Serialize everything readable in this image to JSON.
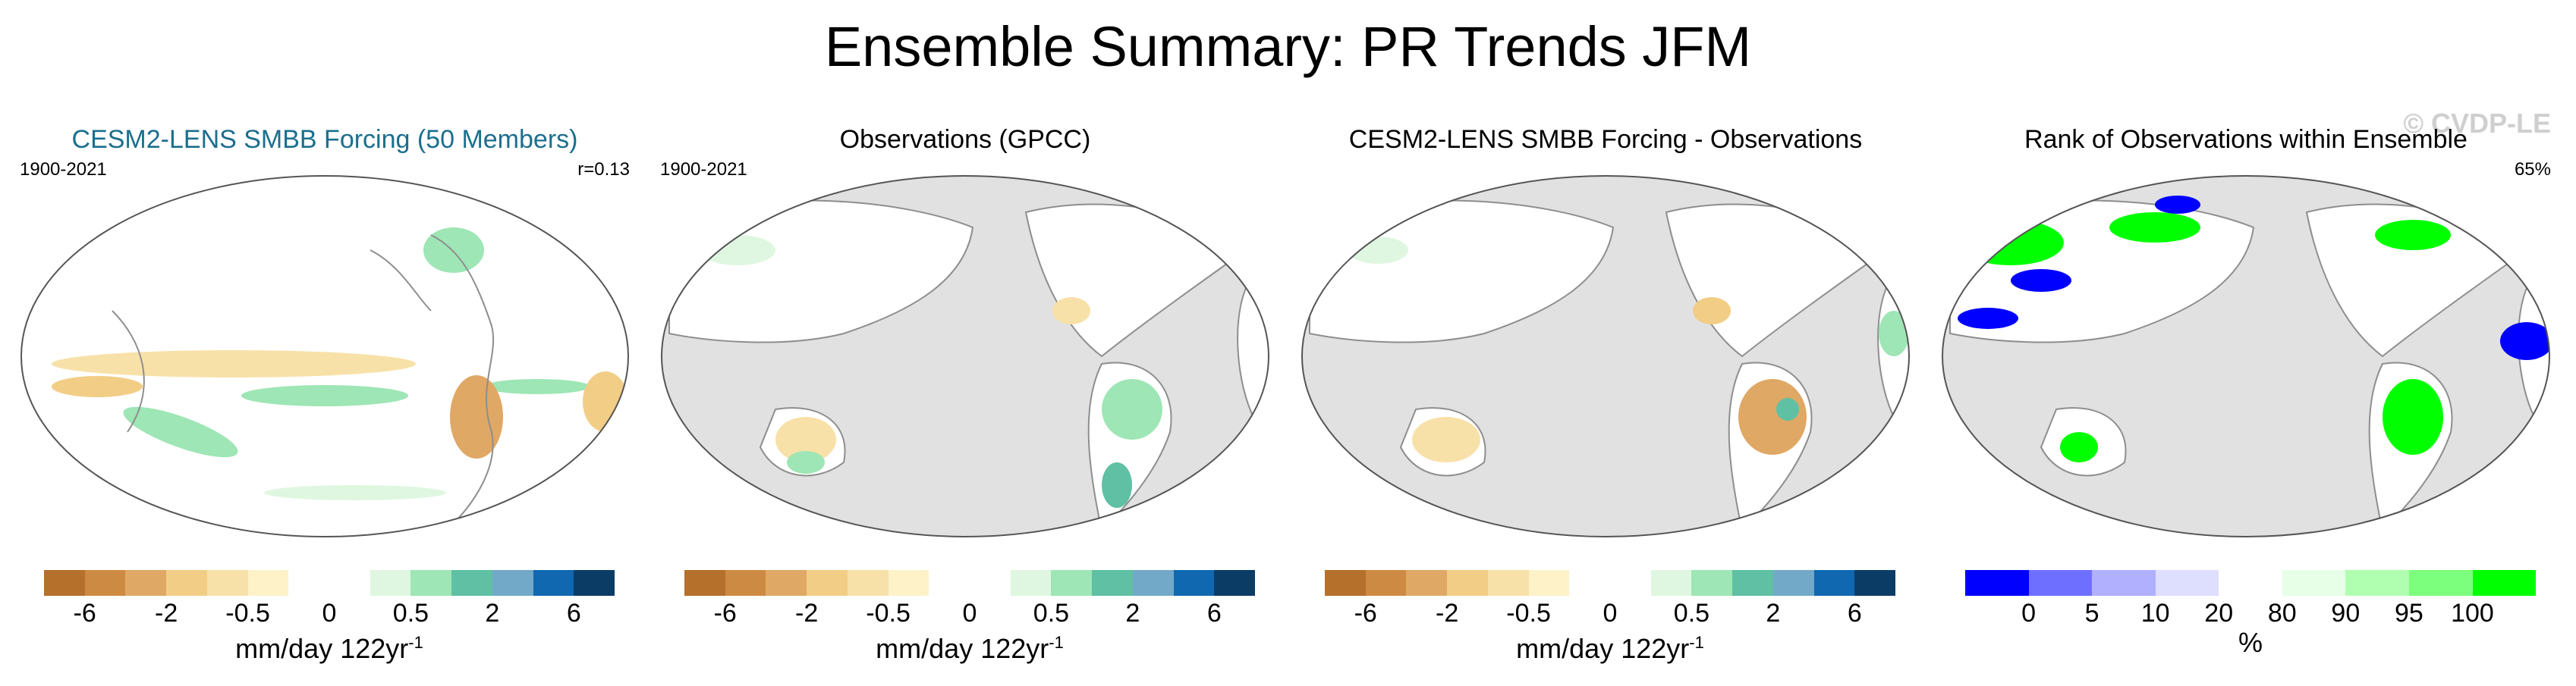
{
  "title": "Ensemble Summary: PR Trends JFM",
  "colors": {
    "diverging": [
      "#b5702c",
      "#cd8a43",
      "#e0a865",
      "#f2cd86",
      "#f8e1a8",
      "#fdf2c8",
      "#ffffff",
      "#ffffff",
      "#dff7e0",
      "#9ee6b5",
      "#5fc0a3",
      "#72a9c8",
      "#1068b0",
      "#0b3c66"
    ],
    "rank": [
      "#0000ff",
      "#6f6fff",
      "#b0b0ff",
      "#dedeff",
      "#ffffff",
      "#e6ffe6",
      "#b0ffb0",
      "#7cff7c",
      "#00ff00"
    ],
    "land": "#ffffff",
    "mask": "#e1e1e1",
    "coast": "#8e8e8e",
    "model_title": "#1b6f8e",
    "watermark": "#cfcfcf"
  },
  "panels": [
    {
      "title": "CESM2-LENS SMBB Forcing (50 Members)",
      "period": "1900-2021",
      "stat": "r=0.13",
      "watermark": ""
    },
    {
      "title": "Observations (GPCC)",
      "period": "1900-2021",
      "stat": "",
      "watermark": ""
    },
    {
      "title": "CESM2-LENS SMBB Forcing - Observations",
      "period": "",
      "stat": "",
      "watermark": ""
    },
    {
      "title": "Rank of Observations within Ensemble",
      "period": "",
      "stat": "65%",
      "watermark": "© CVDP-LE"
    }
  ],
  "colorbars": [
    {
      "unit_main": "mm/day 122yr",
      "unit_sup": "-1",
      "ticks": [
        {
          "label": "-6",
          "at": 1
        },
        {
          "label": "-2",
          "at": 3
        },
        {
          "label": "-0.5",
          "at": 5
        },
        {
          "label": "0",
          "at": 7
        },
        {
          "label": "0.5",
          "at": 9
        },
        {
          "label": "2",
          "at": 11
        },
        {
          "label": "6",
          "at": 13
        }
      ]
    },
    {
      "unit_main": "mm/day 122yr",
      "unit_sup": "-1",
      "ticks": [
        {
          "label": "-6",
          "at": 1
        },
        {
          "label": "-2",
          "at": 3
        },
        {
          "label": "-0.5",
          "at": 5
        },
        {
          "label": "0",
          "at": 7
        },
        {
          "label": "0.5",
          "at": 9
        },
        {
          "label": "2",
          "at": 11
        },
        {
          "label": "6",
          "at": 13
        }
      ]
    },
    {
      "unit_main": "mm/day 122yr",
      "unit_sup": "-1",
      "ticks": [
        {
          "label": "-6",
          "at": 1
        },
        {
          "label": "-2",
          "at": 3
        },
        {
          "label": "-0.5",
          "at": 5
        },
        {
          "label": "0",
          "at": 7
        },
        {
          "label": "0.5",
          "at": 9
        },
        {
          "label": "2",
          "at": 11
        },
        {
          "label": "6",
          "at": 13
        }
      ]
    },
    {
      "unit_main": "%",
      "unit_sup": "",
      "ticks": [
        {
          "label": "0",
          "at": 1
        },
        {
          "label": "5",
          "at": 2
        },
        {
          "label": "10",
          "at": 3
        },
        {
          "label": "20",
          "at": 4
        },
        {
          "label": "80",
          "at": 5
        },
        {
          "label": "90",
          "at": 6
        },
        {
          "label": "95",
          "at": 7
        },
        {
          "label": "100",
          "at": 8
        }
      ]
    }
  ],
  "chart_data": [
    {
      "type": "heatmap",
      "title": "CESM2-LENS SMBB Forcing (50 Members)",
      "period": "1900-2021",
      "pattern_correlation": 0.13,
      "domain": "global ocean+land",
      "units": "mm/day 122yr-1",
      "levels": [
        -6,
        -4,
        -2,
        -1,
        -0.5,
        -0.25,
        0,
        0.25,
        0.5,
        1,
        2,
        4,
        6
      ]
    },
    {
      "type": "heatmap",
      "title": "Observations (GPCC)",
      "period": "1900-2021",
      "domain": "land only",
      "units": "mm/day 122yr-1",
      "levels": [
        -6,
        -4,
        -2,
        -1,
        -0.5,
        -0.25,
        0,
        0.25,
        0.5,
        1,
        2,
        4,
        6
      ]
    },
    {
      "type": "heatmap",
      "title": "CESM2-LENS SMBB Forcing - Observations",
      "domain": "land only",
      "units": "mm/day 122yr-1",
      "levels": [
        -6,
        -4,
        -2,
        -1,
        -0.5,
        -0.25,
        0,
        0.25,
        0.5,
        1,
        2,
        4,
        6
      ]
    },
    {
      "type": "heatmap",
      "title": "Rank of Observations within Ensemble",
      "domain": "land only",
      "units": "%",
      "percent_within_ensemble": 65,
      "levels": [
        0,
        5,
        10,
        20,
        80,
        90,
        95,
        100
      ]
    }
  ]
}
